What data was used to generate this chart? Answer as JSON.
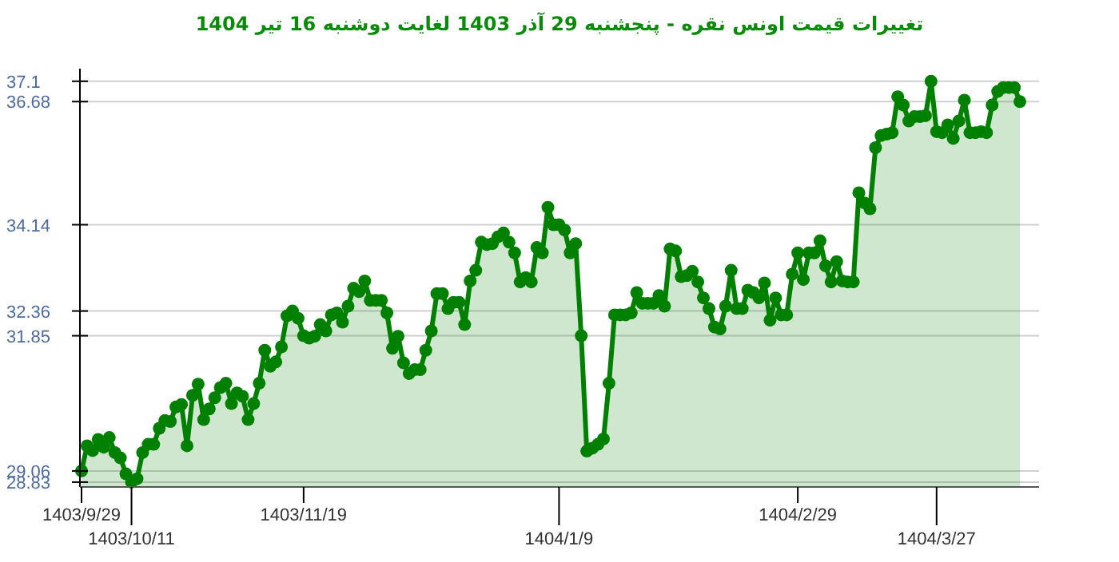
{
  "chart_data": {
    "type": "area",
    "title": "تغییرات قیمت اونس نقره - پنجشنبه 29 آذر 1403 لغایت دوشنبه 16 تیر 1404",
    "categories": [
      "1403/9/29",
      null,
      null,
      null,
      null,
      null,
      null,
      null,
      null,
      "1403/10/11",
      null,
      null,
      null,
      null,
      null,
      null,
      null,
      null,
      null,
      null,
      null,
      null,
      null,
      null,
      null,
      null,
      null,
      null,
      null,
      null,
      null,
      null,
      null,
      null,
      null,
      null,
      null,
      null,
      null,
      null,
      "1403/11/19",
      null,
      null,
      null,
      null,
      null,
      null,
      null,
      null,
      null,
      null,
      null,
      null,
      null,
      null,
      null,
      null,
      null,
      null,
      null,
      null,
      null,
      null,
      null,
      null,
      null,
      null,
      null,
      null,
      null,
      null,
      null,
      null,
      null,
      null,
      null,
      null,
      null,
      null,
      null,
      null,
      null,
      null,
      null,
      null,
      null,
      "1404/1/9",
      null,
      null,
      null,
      null,
      null,
      null,
      null,
      null,
      null,
      null,
      null,
      null,
      null,
      null,
      null,
      null,
      null,
      null,
      null,
      null,
      null,
      null,
      null,
      null,
      null,
      null,
      null,
      null,
      null,
      null,
      null,
      null,
      null,
      null,
      null,
      null,
      null,
      null,
      null,
      null,
      null,
      null,
      "1404/2/29",
      null,
      null,
      null,
      null,
      null,
      null,
      null,
      null,
      null,
      null,
      null,
      null,
      null,
      null,
      null,
      null,
      null,
      null,
      null,
      null,
      null,
      null,
      null,
      null,
      "1404/3/27",
      null,
      null,
      null,
      null,
      null,
      null,
      null,
      null,
      null,
      null,
      null,
      null,
      null,
      null,
      null
    ],
    "ylim": [
      28.73,
      37.36
    ],
    "yticks": [
      28.83,
      29.06,
      31.85,
      32.36,
      34.14,
      36.68,
      37.1
    ],
    "grid": "y",
    "marker": "circle",
    "line_style": "solid",
    "series": [
      {
        "color": "#008000",
        "values": [
          29.06,
          29.58,
          29.48,
          29.71,
          29.55,
          29.75,
          29.44,
          29.33,
          29.0,
          28.83,
          28.9,
          29.44,
          29.61,
          29.61,
          29.94,
          30.1,
          30.08,
          30.38,
          30.43,
          29.58,
          30.62,
          30.85,
          30.12,
          30.34,
          30.57,
          30.78,
          30.87,
          30.45,
          30.67,
          30.6,
          30.12,
          30.45,
          30.87,
          31.55,
          31.22,
          31.31,
          31.62,
          32.26,
          32.36,
          32.21,
          31.85,
          31.8,
          31.84,
          32.08,
          31.95,
          32.28,
          32.32,
          32.13,
          32.46,
          32.83,
          32.76,
          32.98,
          32.58,
          32.58,
          32.58,
          32.32,
          31.59,
          31.84,
          31.29,
          31.07,
          31.15,
          31.15,
          31.55,
          31.95,
          32.72,
          32.72,
          32.41,
          32.54,
          32.54,
          32.08,
          32.98,
          33.2,
          33.78,
          33.73,
          33.75,
          33.89,
          33.97,
          33.78,
          33.56,
          32.96,
          33.05,
          32.96,
          33.67,
          33.56,
          34.5,
          34.14,
          34.14,
          34.03,
          33.56,
          33.75,
          31.85,
          29.47,
          29.53,
          29.61,
          29.72,
          30.87,
          32.28,
          32.28,
          32.28,
          32.32,
          32.74,
          32.52,
          32.52,
          32.52,
          32.68,
          32.46,
          33.64,
          33.6,
          33.07,
          33.09,
          33.18,
          32.96,
          32.63,
          32.41,
          32.03,
          31.99,
          32.46,
          33.2,
          32.41,
          32.41,
          32.79,
          32.74,
          32.63,
          32.94,
          32.17,
          32.63,
          32.28,
          32.28,
          33.12,
          33.56,
          33.01,
          33.56,
          33.56,
          33.81,
          33.29,
          32.96,
          33.38,
          32.98,
          32.96,
          32.96,
          34.8,
          34.59,
          34.47,
          35.73,
          35.98,
          36.01,
          36.04,
          36.78,
          36.61,
          36.28,
          36.37,
          36.37,
          36.39,
          37.1,
          36.06,
          36.04,
          36.2,
          35.92,
          36.28,
          36.71,
          36.04,
          36.04,
          36.06,
          36.04,
          36.61,
          36.89,
          36.97,
          36.97,
          36.97,
          36.68
        ]
      }
    ]
  }
}
